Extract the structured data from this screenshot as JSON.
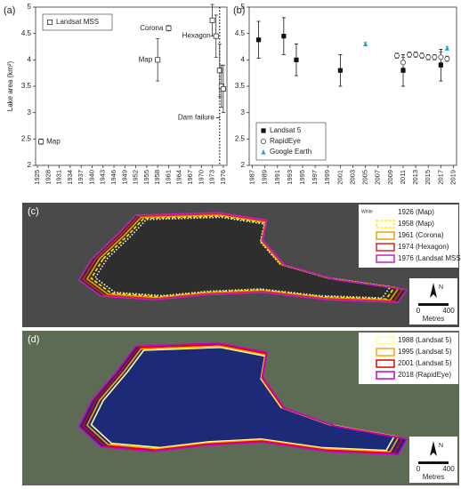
{
  "chart_data": [
    {
      "type": "scatter",
      "label": "(a)",
      "y_label": "Lake area (km²)",
      "xlim": [
        1924.5,
        1977
      ],
      "xticks": [
        1925,
        1928,
        1931,
        1934,
        1937,
        1940,
        1943,
        1946,
        1949,
        1952,
        1955,
        1958,
        1961,
        1964,
        1967,
        1970,
        1973,
        1976
      ],
      "ylim": [
        2,
        5
      ],
      "yticks": [
        2,
        2.5,
        3,
        3.5,
        4,
        4.5,
        5
      ],
      "legend": "upper left",
      "series": [
        {
          "name": "Landsat MSS",
          "marker": "square-open",
          "color": "#333333",
          "x": [
            1926,
            1958,
            1961,
            1973,
            1974,
            1975,
            1975.5,
            1976
          ],
          "values": [
            2.45,
            4.0,
            4.6,
            4.75,
            4.45,
            3.8,
            3.5,
            3.45
          ],
          "errors": [
            0.05,
            0.4,
            0.05,
            0.3,
            0.4,
            0.5,
            0.4,
            0.45
          ]
        }
      ],
      "annotations": [
        {
          "text": "Map",
          "x": 1926,
          "y": 2.45
        },
        {
          "text": "Map",
          "x": 1958,
          "y": 4.0
        },
        {
          "text": "Corona",
          "x": 1961,
          "y": 4.6
        },
        {
          "text": "Hexagon",
          "x": 1974,
          "y": 4.45
        },
        {
          "text": "Dam failure",
          "x": 1975,
          "y": 2.9
        }
      ],
      "vline": 1975
    },
    {
      "type": "scatter",
      "label": "(b)",
      "xlim": [
        1986.5,
        2019.5
      ],
      "xticks": [
        1987,
        1989,
        1991,
        1993,
        1995,
        1997,
        1999,
        2001,
        2003,
        2005,
        2007,
        2009,
        2011,
        2013,
        2015,
        2017,
        2019
      ],
      "ylim": [
        2,
        5
      ],
      "yticks": [
        2,
        2.5,
        3,
        3.5,
        4,
        4.5,
        5
      ],
      "legend": "lower left",
      "series": [
        {
          "name": "Landsat 5",
          "marker": "square",
          "color": "#111111",
          "x": [
            1988,
            1992,
            1994,
            2001,
            2011,
            2017
          ],
          "values": [
            4.38,
            4.45,
            4.0,
            3.8,
            3.8,
            3.9
          ],
          "errors": [
            0.35,
            0.35,
            0.3,
            0.3,
            0.3,
            0.3
          ]
        },
        {
          "name": "RapidEye",
          "marker": "circle-open",
          "color": "#444444",
          "x": [
            2010,
            2011,
            2012,
            2013,
            2014,
            2015,
            2016,
            2017,
            2018
          ],
          "values": [
            4.08,
            3.95,
            4.1,
            4.1,
            4.08,
            4.05,
            4.05,
            4.05,
            4.02
          ],
          "errors": [
            0.05,
            0.1,
            0.05,
            0.05,
            0.05,
            0.05,
            0.05,
            0.1,
            0.05
          ]
        },
        {
          "name": "Google Earth",
          "marker": "triangle",
          "color": "#29a3d6",
          "x": [
            2005,
            2018
          ],
          "values": [
            4.3,
            4.22
          ],
          "errors": [
            0.03,
            0.03
          ]
        }
      ]
    }
  ],
  "map_panels": [
    {
      "label": "(c)",
      "legend_note": "White",
      "background": "#4a4a4a",
      "lake": "#2e2e2e",
      "legend": [
        {
          "label": "1926 (Map)",
          "color": "#ffffff",
          "style": "dotted"
        },
        {
          "label": "1958 (Map)",
          "color": "#ffee00",
          "style": "dashed"
        },
        {
          "label": "1961 (Corona)",
          "color": "#f0a000",
          "style": "solid"
        },
        {
          "label": "1974 (Hexagon)",
          "color": "#e02020",
          "style": "solid"
        },
        {
          "label": "1976 (Landsat MSS)",
          "color": "#c020c0",
          "style": "solid"
        }
      ],
      "scale": [
        0,
        400
      ],
      "scale_unit": "Metres",
      "north": "N"
    },
    {
      "label": "(d)",
      "background": "#5d6b55",
      "lake": "#1c2a78",
      "legend": [
        {
          "label": "1988 (Landsat 5)",
          "color": "#ffff99",
          "style": "solid"
        },
        {
          "label": "1995 (Landsat 5)",
          "color": "#ffa500",
          "style": "solid"
        },
        {
          "label": "2001 (Landsat 5)",
          "color": "#e00000",
          "style": "solid"
        },
        {
          "label": "2018 (RapidEye)",
          "color": "#cc00cc",
          "style": "solid"
        }
      ],
      "scale": [
        0,
        400
      ],
      "scale_unit": "Metres",
      "north": "N"
    }
  ]
}
